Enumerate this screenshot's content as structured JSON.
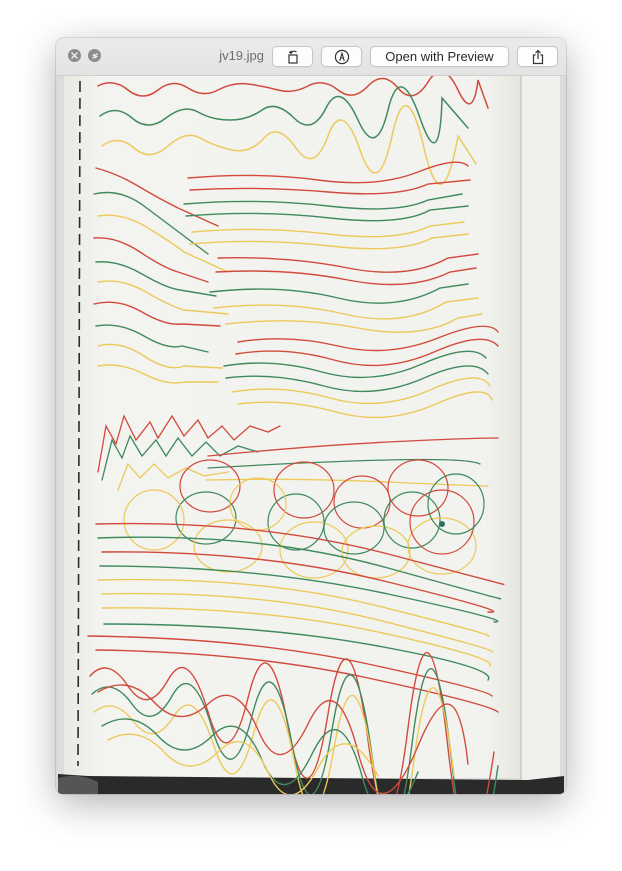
{
  "window": {
    "filename": "jv19.jpg",
    "close_icon": "close-icon",
    "fullscreen_icon": "fullscreen-icon"
  },
  "toolbar": {
    "rotate_icon": "rotate-left-icon",
    "markup_icon": "markup-pen-icon",
    "open_with_preview_label": "Open with Preview",
    "share_icon": "share-icon"
  },
  "image": {
    "description_colors": {
      "paper": "#f1f1ec",
      "red": "#d24a3c",
      "green": "#3f8a5e",
      "yellow": "#edc95a"
    }
  }
}
